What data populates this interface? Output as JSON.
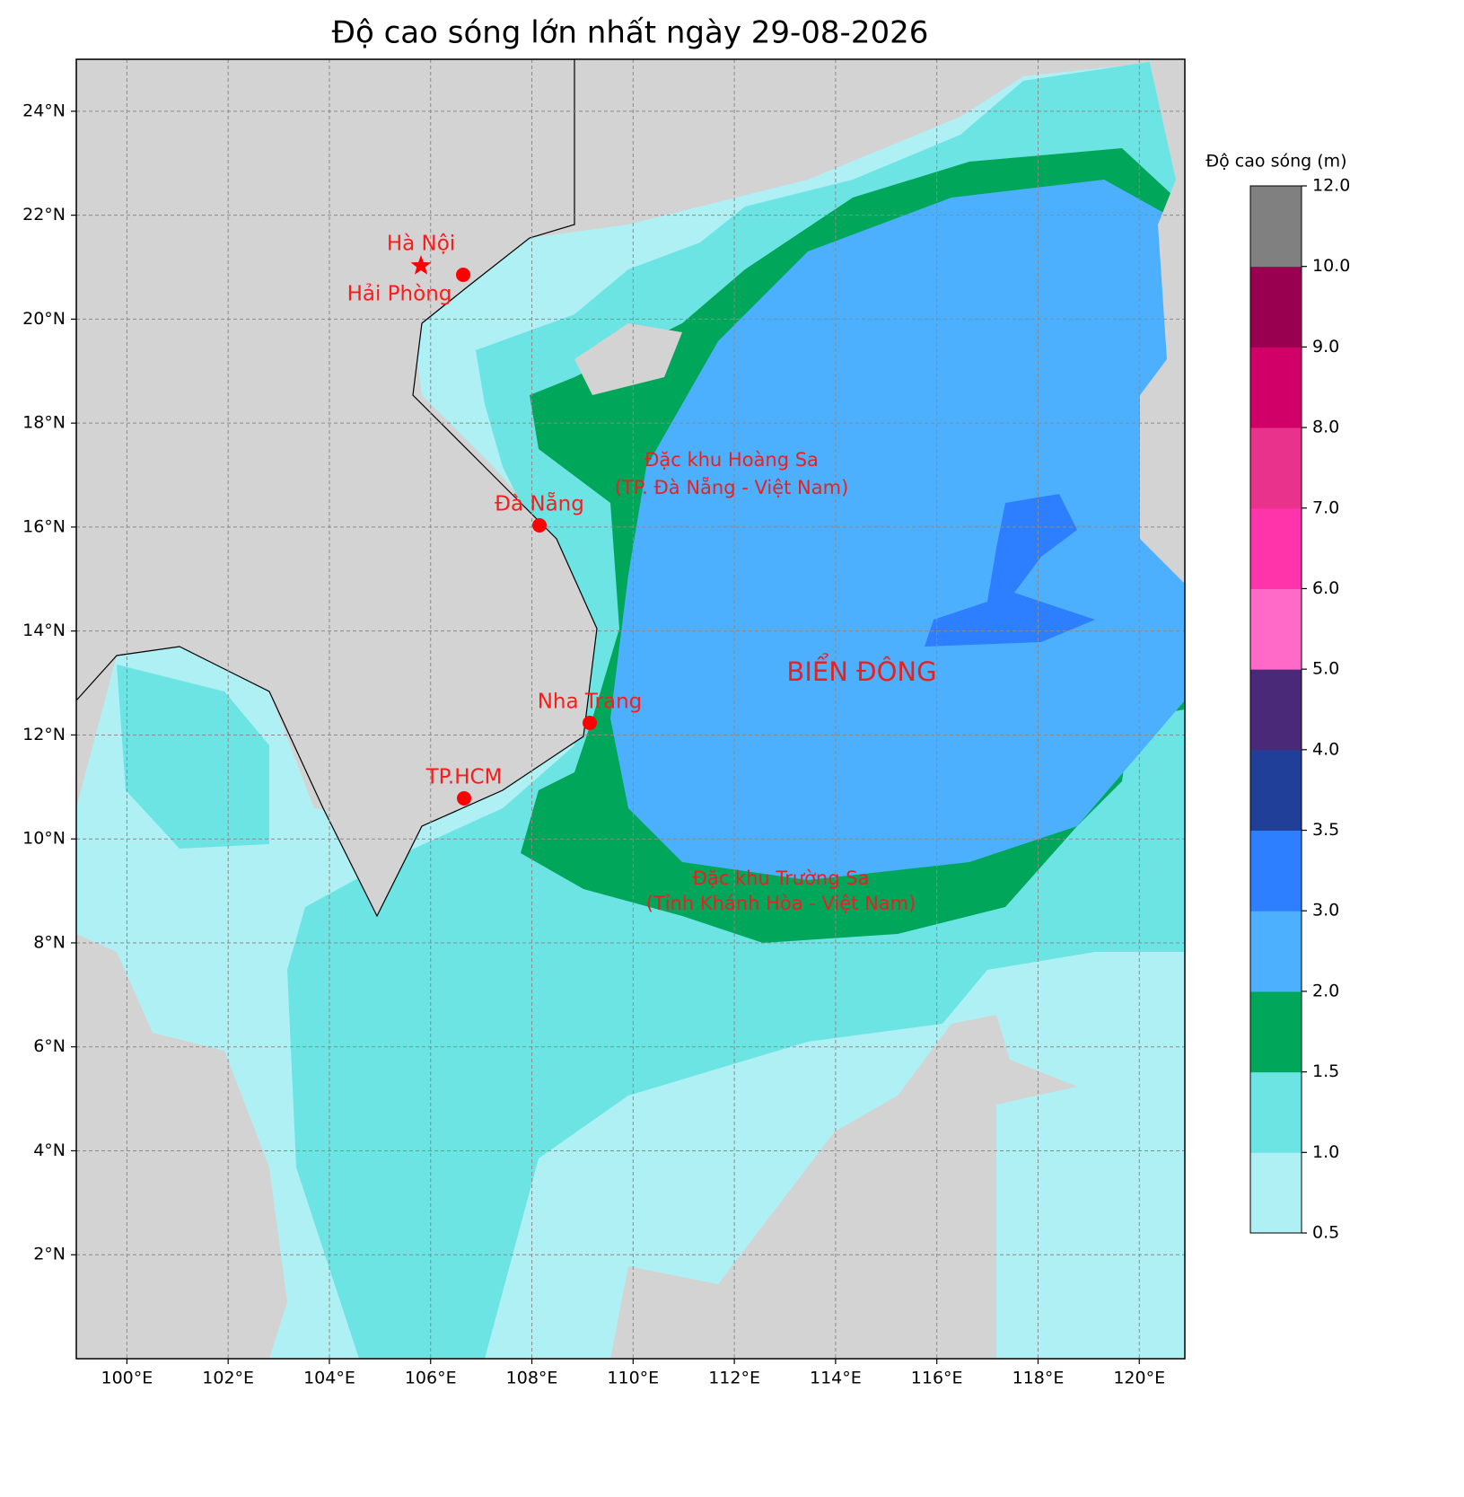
{
  "title": "Độ cao sóng lớn nhất ngày 29-08-2026",
  "map": {
    "xlim": [
      99,
      120.9
    ],
    "ylim": [
      0,
      25
    ],
    "grid": true,
    "xticks": [
      {
        "value": 100,
        "label": "100°E"
      },
      {
        "value": 102,
        "label": "102°E"
      },
      {
        "value": 104,
        "label": "104°E"
      },
      {
        "value": 106,
        "label": "106°E"
      },
      {
        "value": 108,
        "label": "108°E"
      },
      {
        "value": 110,
        "label": "110°E"
      },
      {
        "value": 112,
        "label": "112°E"
      },
      {
        "value": 114,
        "label": "114°E"
      },
      {
        "value": 116,
        "label": "116°E"
      },
      {
        "value": 118,
        "label": "118°E"
      },
      {
        "value": 120,
        "label": "120°E"
      }
    ],
    "yticks": [
      {
        "value": 2,
        "label": "2°N"
      },
      {
        "value": 4,
        "label": "4°N"
      },
      {
        "value": 6,
        "label": "6°N"
      },
      {
        "value": 8,
        "label": "8°N"
      },
      {
        "value": 10,
        "label": "10°N"
      },
      {
        "value": 12,
        "label": "12°N"
      },
      {
        "value": 14,
        "label": "14°N"
      },
      {
        "value": 16,
        "label": "16°N"
      },
      {
        "value": 18,
        "label": "18°N"
      },
      {
        "value": 20,
        "label": "20°N"
      },
      {
        "value": 22,
        "label": "22°N"
      },
      {
        "value": 24,
        "label": "24°N"
      }
    ]
  },
  "places": [
    {
      "label": "Hà Nội",
      "marker": "star"
    },
    {
      "label": "Hải Phòng",
      "marker": "dot"
    },
    {
      "label": "Đà Nẵng",
      "marker": "dot"
    },
    {
      "label": "Nha Trang",
      "marker": "dot"
    },
    {
      "label": "TP.HCM",
      "marker": "dot"
    }
  ],
  "annotations": [
    "Đặc khu Hoàng Sa",
    "(TP. Đà Nẵng - Việt Nam)",
    "Đặc khu Trường Sa",
    "(Tỉnh Khánh Hòa - Việt Nam)",
    "BIỂN ĐÔNG"
  ],
  "colorbar": {
    "label": "Độ cao sóng (m)",
    "ticks": [
      0.5,
      {
        "value": 1,
        "label": "1.0"
      },
      1.5,
      {
        "value": 2,
        "label": "2.0"
      },
      {
        "value": 3,
        "label": "3.0"
      },
      3.5,
      {
        "value": 4,
        "label": "4.0"
      },
      {
        "value": 5,
        "label": "5.0"
      },
      {
        "value": 6,
        "label": "6.0"
      },
      {
        "value": 7,
        "label": "7.0"
      },
      {
        "value": 8,
        "label": "8.0"
      },
      {
        "value": 9,
        "label": "9.0"
      },
      {
        "value": 10,
        "label": "10.0"
      },
      {
        "value": 12,
        "label": "12.0"
      }
    ],
    "colors": [
      "#aff0f5",
      "#6de4e4",
      "#00a65a",
      "#4db0ff",
      "#2e7fff",
      "#1f3f99",
      "#4a2a78",
      "#ff6ac8",
      "#ff33aa",
      "#e8328c",
      "#d10068",
      "#990050",
      "#808080"
    ]
  }
}
